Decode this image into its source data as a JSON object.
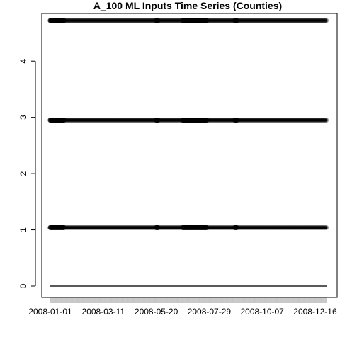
{
  "chart_data": {
    "type": "scatter",
    "title": "A_100 ML Inputs Time Series (Counties)",
    "xlabel": "",
    "ylabel": "",
    "x_range": [
      "2008-01-01",
      "2008-12-31"
    ],
    "ylim": [
      -0.2,
      4.85
    ],
    "x_tick_labels": [
      "2008-01-01",
      "2008-03-11",
      "2008-05-20",
      "2008-07-29",
      "2008-10-07",
      "2008-12-16"
    ],
    "x_tick_dates": [
      "2008-01-01",
      "2008-03-11",
      "2008-05-20",
      "2008-07-29",
      "2008-10-07",
      "2008-12-16"
    ],
    "y_ticks": [
      0,
      1,
      2,
      3,
      4
    ],
    "y_tick_labels": [
      "0",
      "1",
      "2",
      "3",
      "4"
    ],
    "grid": false,
    "legend": "none",
    "point_color": "#000000",
    "series": [
      {
        "y": 4.72,
        "start": "2008-01-01",
        "end": "2008-12-31"
      },
      {
        "y": 2.95,
        "start": "2008-01-01",
        "end": "2008-12-31"
      },
      {
        "y": 1.04,
        "start": "2008-01-01",
        "end": "2008-12-31"
      },
      {
        "y": 0.0,
        "start": "2008-01-01",
        "end": "2008-12-31"
      }
    ],
    "dense_ranges": [
      {
        "start": "2008-01-01",
        "end": "2008-01-20"
      },
      {
        "start": "2008-05-20",
        "end": "2008-05-23"
      },
      {
        "start": "2008-06-24",
        "end": "2008-07-26"
      },
      {
        "start": "2008-09-01",
        "end": "2008-09-04"
      }
    ]
  }
}
